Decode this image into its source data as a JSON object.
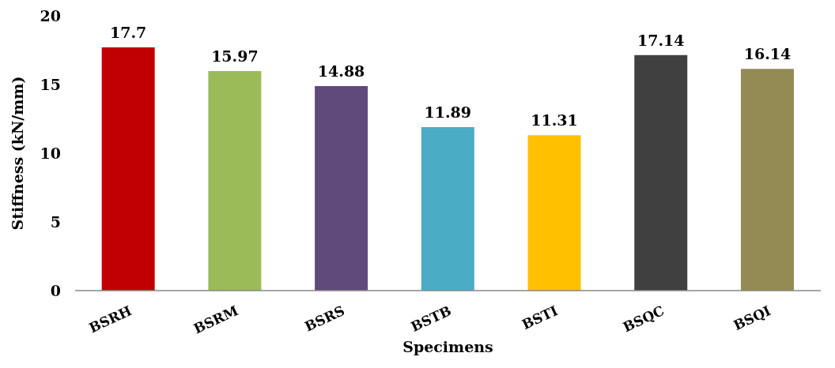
{
  "chart_data": {
    "type": "bar",
    "xlabel": "Specimens",
    "ylabel": "Stiffness (kN/mm)",
    "categories": [
      "BSRH",
      "BSRM",
      "BSRS",
      "BSTB",
      "BSTI",
      "BSQC",
      "BSQI"
    ],
    "values": [
      17.7,
      15.97,
      14.88,
      11.89,
      11.31,
      17.14,
      16.14
    ],
    "colors": [
      "#c00000",
      "#9bbb59",
      "#604a7b",
      "#4bacc6",
      "#ffc000",
      "#404040",
      "#948a54"
    ],
    "ylim": [
      0,
      20
    ],
    "yticks": [
      0,
      5,
      10,
      15,
      20
    ],
    "data_labels": true
  }
}
